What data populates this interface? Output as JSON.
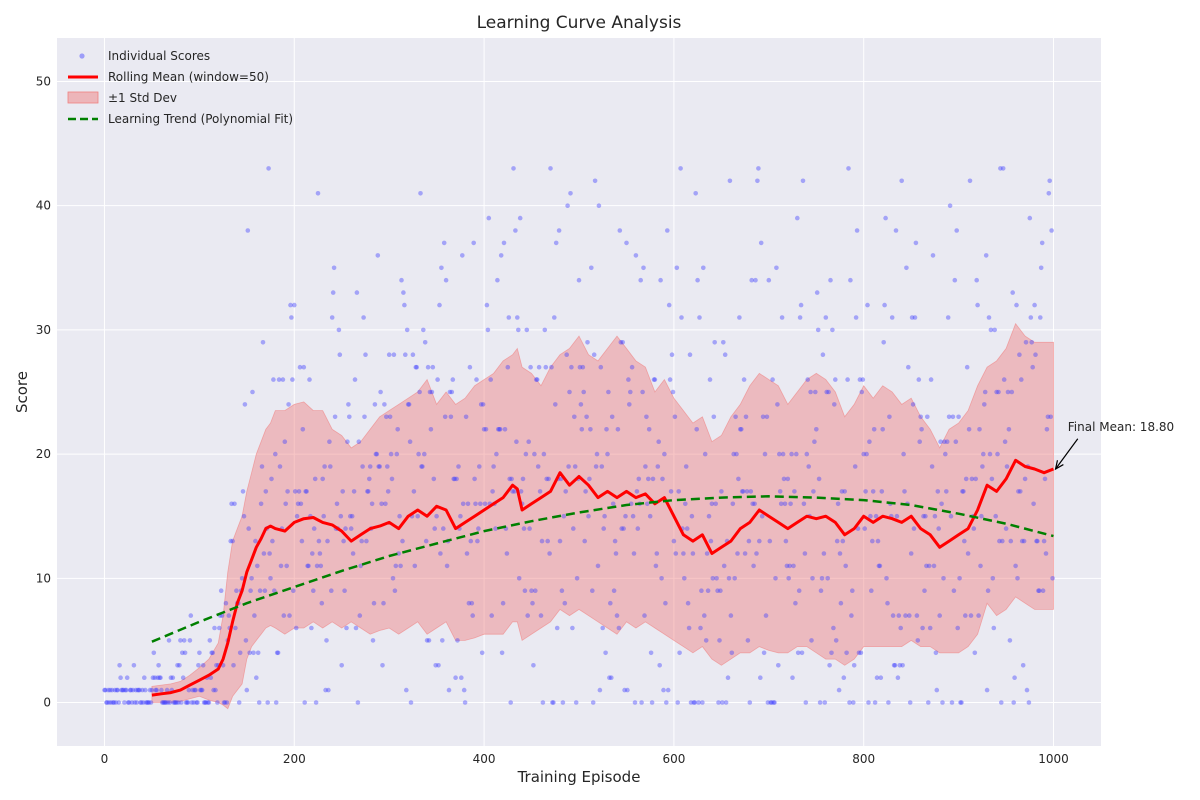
{
  "chart_data": {
    "type": "line",
    "title": "Learning Curve Analysis",
    "xlabel": "Training Episode",
    "ylabel": "Score",
    "xlim": [
      -50,
      1050
    ],
    "ylim": [
      -3.5,
      53.5
    ],
    "xticks": [
      0,
      200,
      400,
      600,
      800,
      1000
    ],
    "yticks": [
      0,
      10,
      20,
      30,
      40,
      50
    ],
    "grid": true,
    "legend_position": "top-left",
    "colors": {
      "background": "#eaeaf2",
      "grid": "#ffffff",
      "scatter": "#4040ff",
      "rolling_mean": "#ff0000",
      "std_band": "#f08080",
      "trend": "#008000",
      "annotation": "#000000"
    },
    "legend": [
      {
        "label": "Individual Scores",
        "kind": "scatter"
      },
      {
        "label": "Rolling Mean (window=50)",
        "kind": "line"
      },
      {
        "label": "±1 Std Dev",
        "kind": "band"
      },
      {
        "label": "Learning Trend (Polynomial Fit)",
        "kind": "dashed"
      }
    ],
    "series": [
      {
        "name": "Rolling Mean (window=50)",
        "x": [
          50,
          60,
          70,
          80,
          90,
          100,
          110,
          120,
          125,
          130,
          135,
          140,
          145,
          150,
          155,
          160,
          165,
          170,
          175,
          180,
          190,
          200,
          210,
          220,
          230,
          240,
          250,
          260,
          270,
          280,
          290,
          300,
          310,
          320,
          330,
          340,
          350,
          360,
          370,
          380,
          390,
          400,
          410,
          420,
          430,
          435,
          440,
          450,
          460,
          470,
          480,
          490,
          500,
          510,
          520,
          530,
          540,
          550,
          560,
          570,
          580,
          590,
          600,
          610,
          620,
          630,
          640,
          650,
          660,
          670,
          680,
          690,
          700,
          710,
          720,
          730,
          740,
          750,
          760,
          770,
          780,
          790,
          800,
          810,
          820,
          830,
          840,
          850,
          860,
          870,
          880,
          890,
          900,
          910,
          920,
          930,
          940,
          950,
          960,
          970,
          980,
          990,
          1000
        ],
        "values": [
          0.6,
          0.7,
          0.8,
          1.0,
          1.4,
          1.8,
          2.2,
          2.7,
          3.5,
          4.8,
          6.5,
          8.0,
          9.0,
          10.5,
          11.5,
          12.5,
          13.2,
          14.0,
          14.2,
          14.0,
          13.8,
          14.5,
          14.8,
          14.9,
          14.5,
          14.3,
          13.8,
          13.0,
          13.5,
          14.0,
          14.2,
          14.5,
          14.0,
          15.0,
          15.5,
          15.0,
          15.8,
          15.5,
          14.0,
          14.5,
          15.0,
          15.5,
          16.0,
          16.5,
          17.5,
          17.2,
          15.5,
          16.0,
          16.5,
          17.0,
          18.5,
          17.5,
          18.2,
          17.5,
          16.5,
          17.0,
          16.5,
          17.0,
          16.5,
          16.8,
          16.0,
          16.5,
          15.0,
          13.5,
          13.0,
          13.5,
          12.0,
          12.5,
          13.0,
          14.0,
          14.5,
          15.5,
          15.0,
          14.5,
          14.0,
          14.5,
          15.0,
          14.8,
          15.0,
          14.5,
          13.5,
          14.0,
          15.0,
          14.5,
          15.0,
          14.8,
          14.5,
          15.0,
          14.0,
          13.5,
          12.5,
          13.0,
          13.5,
          14.0,
          15.5,
          17.5,
          17.0,
          18.0,
          19.5,
          19.0,
          18.8,
          18.5,
          18.8
        ]
      },
      {
        "name": "±1 Std Dev",
        "x": [
          50,
          60,
          70,
          80,
          90,
          100,
          110,
          120,
          125,
          130,
          135,
          140,
          145,
          150,
          155,
          160,
          165,
          170,
          175,
          180,
          190,
          200,
          210,
          220,
          230,
          240,
          250,
          260,
          270,
          280,
          290,
          300,
          310,
          320,
          330,
          340,
          350,
          360,
          370,
          380,
          390,
          400,
          410,
          420,
          430,
          435,
          440,
          450,
          460,
          470,
          480,
          490,
          500,
          510,
          520,
          530,
          540,
          550,
          560,
          570,
          580,
          590,
          600,
          610,
          620,
          630,
          640,
          650,
          660,
          670,
          680,
          690,
          700,
          710,
          720,
          730,
          740,
          750,
          760,
          770,
          780,
          790,
          800,
          810,
          820,
          830,
          840,
          850,
          860,
          870,
          880,
          890,
          900,
          910,
          920,
          930,
          940,
          950,
          960,
          970,
          980,
          990,
          1000
        ],
        "upper": [
          1.3,
          1.4,
          1.5,
          1.7,
          2.2,
          2.8,
          3.5,
          4.8,
          7.0,
          10.5,
          13.0,
          14.0,
          15.0,
          17.0,
          18.5,
          20.0,
          21.0,
          22.0,
          22.5,
          23.5,
          23.5,
          24.0,
          24.2,
          23.5,
          23.5,
          22.0,
          21.5,
          20.5,
          21.0,
          22.0,
          23.0,
          23.5,
          24.0,
          24.5,
          25.0,
          26.0,
          24.0,
          25.0,
          24.0,
          24.5,
          25.5,
          26.0,
          26.5,
          27.5,
          28.0,
          28.5,
          27.0,
          26.5,
          25.5,
          27.0,
          28.0,
          28.5,
          29.5,
          28.0,
          27.5,
          28.5,
          29.5,
          28.5,
          27.5,
          27.0,
          25.0,
          26.0,
          24.5,
          23.5,
          22.5,
          23.0,
          21.0,
          21.5,
          23.0,
          24.0,
          25.5,
          26.5,
          26.0,
          25.5,
          24.0,
          25.0,
          26.0,
          26.5,
          26.0,
          25.0,
          23.0,
          24.0,
          25.5,
          24.5,
          25.5,
          25.0,
          24.0,
          24.5,
          23.0,
          22.0,
          20.5,
          22.0,
          22.5,
          23.5,
          25.5,
          27.0,
          27.5,
          28.5,
          30.5,
          29.5,
          29.0,
          29.0,
          29.0
        ],
        "lower": [
          0.0,
          0.0,
          0.0,
          0.1,
          0.3,
          0.5,
          0.2,
          0.0,
          -0.2,
          -0.5,
          0.5,
          1.0,
          1.5,
          3.5,
          4.5,
          5.0,
          5.5,
          6.0,
          6.2,
          6.0,
          5.5,
          6.0,
          6.0,
          6.5,
          6.0,
          6.5,
          6.0,
          6.5,
          6.0,
          5.5,
          5.8,
          6.0,
          5.5,
          6.0,
          6.5,
          5.5,
          6.0,
          6.5,
          5.0,
          5.0,
          5.2,
          5.5,
          5.5,
          5.5,
          6.5,
          6.5,
          5.0,
          5.5,
          6.0,
          6.5,
          7.5,
          7.0,
          7.5,
          7.0,
          6.5,
          6.0,
          5.5,
          6.5,
          6.0,
          6.5,
          6.0,
          5.5,
          5.0,
          4.5,
          4.0,
          4.5,
          3.5,
          3.0,
          3.5,
          4.0,
          4.0,
          4.5,
          4.2,
          4.0,
          4.0,
          4.5,
          4.5,
          4.0,
          3.5,
          3.5,
          3.0,
          3.5,
          4.5,
          4.5,
          4.5,
          4.5,
          4.5,
          5.0,
          4.5,
          4.5,
          4.0,
          4.0,
          4.0,
          4.5,
          5.5,
          8.0,
          7.0,
          7.5,
          8.5,
          8.0,
          7.5,
          7.5,
          7.5
        ]
      },
      {
        "name": "Learning Trend (Polynomial Fit)",
        "x": [
          50,
          100,
          150,
          200,
          250,
          300,
          350,
          400,
          450,
          500,
          550,
          600,
          650,
          700,
          750,
          800,
          850,
          900,
          950,
          1000
        ],
        "values": [
          4.9,
          6.5,
          8.0,
          9.3,
          10.6,
          11.8,
          12.8,
          13.8,
          14.6,
          15.3,
          15.9,
          16.3,
          16.5,
          16.6,
          16.5,
          16.3,
          15.9,
          15.2,
          14.4,
          13.4
        ]
      },
      {
        "name": "Individual Scores",
        "kind": "scatter",
        "generator": {
          "n_episodes": 1000,
          "seed": 42,
          "std_scale": 1.0
        }
      }
    ],
    "annotations": [
      {
        "text": "Final Mean: 18.80",
        "x": 1000,
        "y": 18.8,
        "text_x": 1015,
        "text_y": 22.2
      }
    ]
  }
}
